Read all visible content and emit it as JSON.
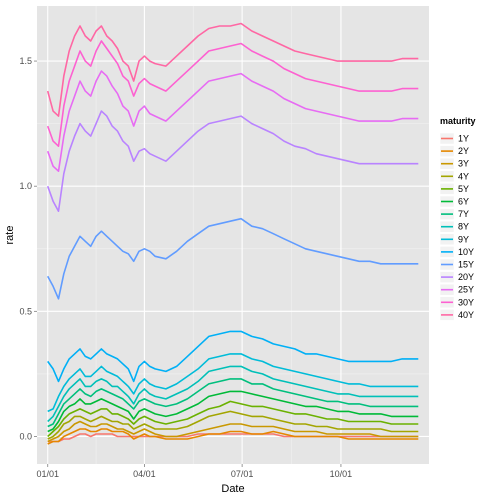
{
  "chart_data": {
    "type": "line",
    "xlabel": "Date",
    "ylabel": "rate",
    "x_ticks": [
      "01/01",
      "04/01",
      "07/01",
      "10/01"
    ],
    "x_tick_days": [
      0,
      90,
      181,
      273
    ],
    "x_range_days": [
      -10,
      355
    ],
    "y_ticks": [
      0.0,
      0.5,
      1.0,
      1.5
    ],
    "y_tick_labels": [
      "0.0",
      "0.5",
      "1.0",
      "1.5"
    ],
    "ylim": [
      -0.11,
      1.72
    ],
    "grid": true,
    "legend": {
      "title": "maturity",
      "position": "right"
    },
    "x_days": [
      0,
      5,
      10,
      15,
      20,
      25,
      30,
      35,
      40,
      45,
      50,
      55,
      60,
      65,
      70,
      75,
      80,
      85,
      90,
      95,
      100,
      110,
      120,
      130,
      140,
      150,
      160,
      170,
      180,
      190,
      200,
      210,
      220,
      230,
      240,
      250,
      260,
      270,
      280,
      290,
      300,
      310,
      320,
      330,
      340,
      345
    ],
    "series": [
      {
        "name": "1Y",
        "color": "#F8766D",
        "values": [
          -0.02,
          -0.02,
          -0.02,
          -0.01,
          -0.01,
          0.0,
          0.01,
          0.01,
          0.0,
          0.01,
          0.01,
          0.01,
          0.01,
          0.0,
          0.0,
          0.0,
          0.0,
          0.0,
          0.0,
          0.0,
          0.0,
          0.0,
          0.0,
          0.0,
          0.01,
          0.01,
          0.01,
          0.01,
          0.01,
          0.01,
          0.01,
          0.01,
          0.0,
          0.0,
          0.0,
          0.0,
          0.0,
          0.0,
          0.0,
          0.0,
          0.0,
          0.0,
          0.0,
          0.0,
          0.0,
          0.0
        ]
      },
      {
        "name": "2Y",
        "color": "#E58700",
        "values": [
          -0.03,
          -0.02,
          -0.02,
          0.0,
          0.01,
          0.02,
          0.03,
          0.03,
          0.02,
          0.02,
          0.03,
          0.03,
          0.02,
          0.02,
          0.02,
          0.01,
          -0.01,
          0.0,
          0.01,
          0.0,
          0.0,
          -0.01,
          -0.01,
          -0.01,
          0.0,
          0.01,
          0.01,
          0.02,
          0.02,
          0.01,
          0.01,
          0.02,
          0.01,
          0.0,
          0.0,
          0.0,
          0.0,
          0.0,
          -0.01,
          -0.01,
          -0.01,
          -0.01,
          -0.01,
          -0.01,
          -0.01,
          -0.01
        ]
      },
      {
        "name": "3Y",
        "color": "#C99800",
        "values": [
          -0.02,
          -0.01,
          0.0,
          0.02,
          0.03,
          0.05,
          0.06,
          0.05,
          0.04,
          0.04,
          0.05,
          0.05,
          0.04,
          0.03,
          0.03,
          0.02,
          0.01,
          0.02,
          0.03,
          0.02,
          0.01,
          0.0,
          0.0,
          0.01,
          0.02,
          0.03,
          0.04,
          0.05,
          0.05,
          0.04,
          0.04,
          0.04,
          0.03,
          0.02,
          0.02,
          0.02,
          0.01,
          0.01,
          0.01,
          0.01,
          0.01,
          0.0,
          0.0,
          0.0,
          0.0,
          0.0
        ]
      },
      {
        "name": "4Y",
        "color": "#A3A500",
        "values": [
          -0.01,
          0.0,
          0.02,
          0.05,
          0.06,
          0.08,
          0.08,
          0.07,
          0.06,
          0.07,
          0.08,
          0.07,
          0.06,
          0.06,
          0.05,
          0.05,
          0.03,
          0.04,
          0.05,
          0.04,
          0.03,
          0.03,
          0.03,
          0.04,
          0.06,
          0.08,
          0.09,
          0.1,
          0.09,
          0.08,
          0.08,
          0.07,
          0.06,
          0.05,
          0.05,
          0.04,
          0.04,
          0.03,
          0.03,
          0.03,
          0.03,
          0.03,
          0.02,
          0.02,
          0.02,
          0.02
        ]
      },
      {
        "name": "5Y",
        "color": "#6BB100",
        "values": [
          0.0,
          0.02,
          0.04,
          0.07,
          0.09,
          0.1,
          0.11,
          0.1,
          0.09,
          0.1,
          0.11,
          0.11,
          0.09,
          0.09,
          0.08,
          0.07,
          0.05,
          0.07,
          0.08,
          0.07,
          0.06,
          0.05,
          0.06,
          0.07,
          0.09,
          0.11,
          0.12,
          0.14,
          0.13,
          0.12,
          0.12,
          0.11,
          0.1,
          0.09,
          0.09,
          0.08,
          0.07,
          0.07,
          0.06,
          0.06,
          0.06,
          0.06,
          0.05,
          0.05,
          0.05,
          0.05
        ]
      },
      {
        "name": "6Y",
        "color": "#00BA38",
        "values": [
          0.02,
          0.03,
          0.06,
          0.1,
          0.12,
          0.13,
          0.15,
          0.13,
          0.13,
          0.14,
          0.15,
          0.14,
          0.13,
          0.12,
          0.11,
          0.1,
          0.07,
          0.1,
          0.11,
          0.1,
          0.09,
          0.08,
          0.09,
          0.11,
          0.13,
          0.16,
          0.17,
          0.18,
          0.18,
          0.17,
          0.16,
          0.15,
          0.14,
          0.13,
          0.12,
          0.12,
          0.11,
          0.1,
          0.1,
          0.09,
          0.09,
          0.09,
          0.08,
          0.08,
          0.08,
          0.08
        ]
      },
      {
        "name": "7Y",
        "color": "#00BF7D",
        "values": [
          0.04,
          0.05,
          0.09,
          0.13,
          0.15,
          0.17,
          0.19,
          0.17,
          0.16,
          0.18,
          0.19,
          0.18,
          0.17,
          0.16,
          0.15,
          0.13,
          0.11,
          0.14,
          0.15,
          0.14,
          0.13,
          0.12,
          0.13,
          0.15,
          0.18,
          0.21,
          0.22,
          0.23,
          0.23,
          0.21,
          0.21,
          0.19,
          0.18,
          0.17,
          0.16,
          0.15,
          0.14,
          0.14,
          0.13,
          0.13,
          0.12,
          0.12,
          0.12,
          0.12,
          0.12,
          0.12
        ]
      },
      {
        "name": "8Y",
        "color": "#00C0B8",
        "values": [
          0.06,
          0.08,
          0.12,
          0.16,
          0.19,
          0.21,
          0.23,
          0.2,
          0.2,
          0.22,
          0.23,
          0.22,
          0.2,
          0.2,
          0.18,
          0.16,
          0.13,
          0.17,
          0.19,
          0.17,
          0.16,
          0.15,
          0.17,
          0.19,
          0.22,
          0.26,
          0.27,
          0.28,
          0.28,
          0.26,
          0.25,
          0.23,
          0.22,
          0.21,
          0.2,
          0.19,
          0.18,
          0.17,
          0.17,
          0.16,
          0.16,
          0.16,
          0.16,
          0.16,
          0.16,
          0.16
        ]
      },
      {
        "name": "9Y",
        "color": "#00BCD8",
        "values": [
          0.1,
          0.11,
          0.16,
          0.2,
          0.23,
          0.25,
          0.27,
          0.24,
          0.24,
          0.26,
          0.28,
          0.26,
          0.25,
          0.24,
          0.22,
          0.2,
          0.17,
          0.21,
          0.23,
          0.21,
          0.2,
          0.19,
          0.21,
          0.24,
          0.27,
          0.31,
          0.32,
          0.33,
          0.33,
          0.31,
          0.3,
          0.28,
          0.27,
          0.26,
          0.25,
          0.24,
          0.23,
          0.22,
          0.21,
          0.21,
          0.2,
          0.2,
          0.2,
          0.2,
          0.2,
          0.2
        ]
      },
      {
        "name": "10Y",
        "color": "#00B0F6",
        "values": [
          0.3,
          0.27,
          0.22,
          0.27,
          0.31,
          0.33,
          0.35,
          0.32,
          0.31,
          0.33,
          0.35,
          0.33,
          0.32,
          0.31,
          0.29,
          0.27,
          0.22,
          0.28,
          0.3,
          0.28,
          0.27,
          0.26,
          0.28,
          0.32,
          0.36,
          0.4,
          0.41,
          0.42,
          0.42,
          0.4,
          0.39,
          0.37,
          0.36,
          0.35,
          0.33,
          0.33,
          0.32,
          0.31,
          0.3,
          0.3,
          0.3,
          0.3,
          0.3,
          0.31,
          0.31,
          0.31
        ]
      },
      {
        "name": "15Y",
        "color": "#619CFF",
        "values": [
          0.64,
          0.6,
          0.55,
          0.65,
          0.72,
          0.76,
          0.8,
          0.78,
          0.76,
          0.8,
          0.82,
          0.8,
          0.78,
          0.76,
          0.74,
          0.73,
          0.7,
          0.74,
          0.75,
          0.74,
          0.72,
          0.71,
          0.74,
          0.78,
          0.81,
          0.84,
          0.85,
          0.86,
          0.87,
          0.84,
          0.83,
          0.81,
          0.79,
          0.77,
          0.75,
          0.74,
          0.73,
          0.72,
          0.71,
          0.7,
          0.7,
          0.69,
          0.69,
          0.69,
          0.69,
          0.69
        ]
      },
      {
        "name": "20Y",
        "color": "#B983FF",
        "values": [
          1.0,
          0.94,
          0.9,
          1.05,
          1.14,
          1.2,
          1.25,
          1.22,
          1.2,
          1.25,
          1.3,
          1.28,
          1.24,
          1.22,
          1.18,
          1.16,
          1.1,
          1.14,
          1.15,
          1.13,
          1.12,
          1.1,
          1.14,
          1.18,
          1.22,
          1.25,
          1.26,
          1.27,
          1.28,
          1.25,
          1.23,
          1.21,
          1.18,
          1.16,
          1.15,
          1.13,
          1.12,
          1.11,
          1.1,
          1.09,
          1.09,
          1.09,
          1.09,
          1.09,
          1.09,
          1.09
        ]
      },
      {
        "name": "25Y",
        "color": "#E76BF3",
        "values": [
          1.14,
          1.08,
          1.06,
          1.2,
          1.3,
          1.36,
          1.42,
          1.38,
          1.36,
          1.42,
          1.46,
          1.44,
          1.4,
          1.37,
          1.32,
          1.3,
          1.24,
          1.3,
          1.32,
          1.29,
          1.28,
          1.26,
          1.3,
          1.34,
          1.38,
          1.42,
          1.43,
          1.44,
          1.45,
          1.42,
          1.4,
          1.38,
          1.35,
          1.33,
          1.31,
          1.3,
          1.29,
          1.28,
          1.27,
          1.26,
          1.26,
          1.26,
          1.26,
          1.27,
          1.27,
          1.27
        ]
      },
      {
        "name": "30Y",
        "color": "#FD61D1",
        "values": [
          1.24,
          1.18,
          1.16,
          1.32,
          1.42,
          1.48,
          1.54,
          1.5,
          1.48,
          1.54,
          1.58,
          1.55,
          1.52,
          1.49,
          1.44,
          1.42,
          1.36,
          1.41,
          1.43,
          1.41,
          1.4,
          1.38,
          1.42,
          1.46,
          1.5,
          1.54,
          1.55,
          1.56,
          1.57,
          1.54,
          1.52,
          1.5,
          1.47,
          1.45,
          1.43,
          1.42,
          1.41,
          1.4,
          1.39,
          1.38,
          1.38,
          1.38,
          1.38,
          1.39,
          1.39,
          1.39
        ]
      },
      {
        "name": "40Y",
        "color": "#FF67A4",
        "values": [
          1.38,
          1.3,
          1.28,
          1.44,
          1.54,
          1.6,
          1.64,
          1.6,
          1.58,
          1.62,
          1.64,
          1.6,
          1.58,
          1.55,
          1.5,
          1.48,
          1.42,
          1.5,
          1.52,
          1.5,
          1.49,
          1.48,
          1.52,
          1.56,
          1.6,
          1.63,
          1.64,
          1.64,
          1.65,
          1.62,
          1.6,
          1.58,
          1.56,
          1.54,
          1.53,
          1.52,
          1.51,
          1.5,
          1.5,
          1.5,
          1.5,
          1.5,
          1.5,
          1.51,
          1.51,
          1.51
        ]
      }
    ]
  }
}
